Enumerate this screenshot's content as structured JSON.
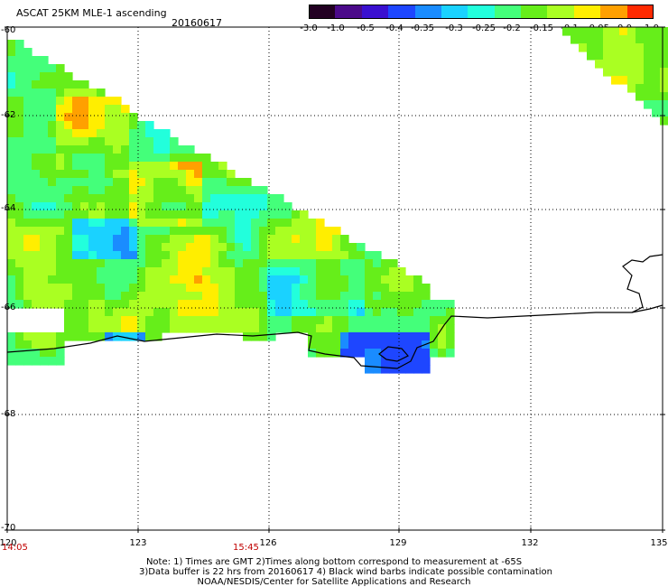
{
  "header": {
    "title": "ASCAT 25KM MLE-1 ascending",
    "date": "20160617"
  },
  "colorbar": {
    "labels": [
      "-3.0",
      "-1.0",
      "-0.5",
      "-0.4",
      "-0.35",
      "-0.3",
      "-0.25",
      "-0.2",
      "-0.15",
      "-0.1",
      "-0.05",
      "0.0",
      "1.0"
    ],
    "colors": [
      "#220022",
      "#4b0a8a",
      "#3a10d0",
      "#1e46ff",
      "#1a8cff",
      "#1ad2ff",
      "#22ffdc",
      "#44ff7a",
      "#66ee1a",
      "#aaff22",
      "#ffee00",
      "#ffa000",
      "#ff2a00"
    ]
  },
  "axes": {
    "lat_labels": [
      "-60",
      "-62",
      "-64",
      "-66",
      "-68",
      "-70"
    ],
    "lon_labels": [
      "120",
      "123",
      "126",
      "129",
      "132",
      "135"
    ],
    "time_labels": [
      "14:05",
      "15:45"
    ]
  },
  "notes": {
    "line1": "Note: 1) Times are GMT 2)Times along bottom correspond to measurement at -65S",
    "line2": "3)Data buffer is 22 hrs from 20160617 4) Black wind barbs indicate possible contamination",
    "line3": "NOAA/NESDIS/Center for Satellite Applications and Research"
  }
}
